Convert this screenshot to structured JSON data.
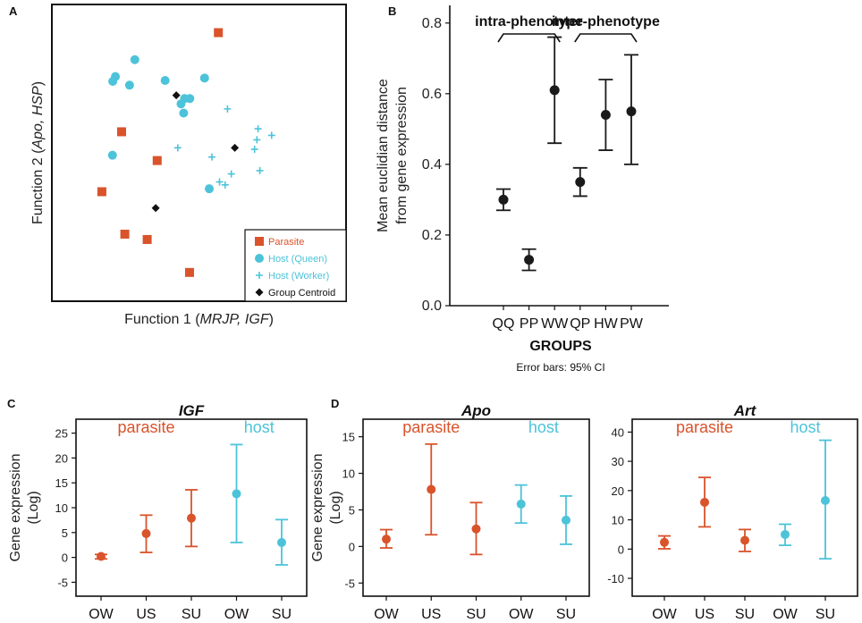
{
  "colors": {
    "parasite": "#d9532b",
    "host": "#4cc3d9",
    "centroid": "#111111",
    "axis": "#111111",
    "point": "#1a1a1a"
  },
  "panels": {
    "A": {
      "letter": "A"
    },
    "B": {
      "letter": "B"
    },
    "C": {
      "letter": "C"
    },
    "D": {
      "letter": "D"
    }
  },
  "chart_data": [
    {
      "id": "A",
      "type": "scatter",
      "xlabel_prefix": "Function 1 (",
      "xlabel_italic": "MRJP, IGF",
      "xlabel_suffix": ")",
      "ylabel_prefix": "Function 2 (",
      "ylabel_italic": "Apo, HSP",
      "ylabel_suffix": ")",
      "xlim": [
        0,
        100
      ],
      "ylim": [
        0,
        100
      ],
      "legend": [
        {
          "key": "parasite",
          "label": "Parasite",
          "marker": "square",
          "color": "#d9532b"
        },
        {
          "key": "queen",
          "label": "Host  (Queen)",
          "marker": "circle",
          "color": "#4cc3d9"
        },
        {
          "key": "worker",
          "label": "Host  (Worker)",
          "marker": "plus",
          "color": "#4cc3d9"
        },
        {
          "key": "centroid",
          "label": "Group Centroid",
          "marker": "diamond",
          "color": "#111111"
        }
      ],
      "series": [
        {
          "name": "Parasite",
          "marker": "square",
          "color": "#d9532b",
          "points": [
            [
              56.6,
              90.5
            ],
            [
              23.7,
              57.1
            ],
            [
              35.8,
              47.4
            ],
            [
              17.0,
              36.9
            ],
            [
              24.8,
              22.6
            ],
            [
              32.4,
              20.8
            ],
            [
              46.8,
              9.7
            ]
          ]
        },
        {
          "name": "Host (Queen)",
          "marker": "circle",
          "color": "#4cc3d9",
          "points": [
            [
              28.2,
              81.4
            ],
            [
              21.6,
              75.7
            ],
            [
              20.7,
              74.1
            ],
            [
              26.4,
              72.8
            ],
            [
              38.5,
              74.4
            ],
            [
              51.9,
              75.2
            ],
            [
              45.1,
              68.3
            ],
            [
              46.9,
              68.3
            ],
            [
              43.9,
              66.5
            ],
            [
              44.8,
              63.4
            ],
            [
              20.6,
              49.2
            ],
            [
              53.5,
              37.9
            ]
          ]
        },
        {
          "name": "Host (Worker)",
          "marker": "plus",
          "color": "#4cc3d9",
          "points": [
            [
              59.7,
              64.8
            ],
            [
              70.1,
              58.1
            ],
            [
              74.7,
              55.9
            ],
            [
              69.7,
              54.4
            ],
            [
              68.9,
              51.2
            ],
            [
              42.8,
              51.7
            ],
            [
              54.4,
              48.6
            ],
            [
              70.7,
              44.0
            ],
            [
              61.0,
              42.9
            ],
            [
              57.0,
              40.2
            ],
            [
              58.9,
              39.2
            ]
          ]
        },
        {
          "name": "Group Centroid",
          "marker": "diamond",
          "color": "#111111",
          "points": [
            [
              42.3,
              69.4
            ],
            [
              62.2,
              51.7
            ],
            [
              35.3,
              31.4
            ]
          ]
        }
      ]
    },
    {
      "id": "B",
      "type": "errorbar",
      "ylabel_line1": "Mean euclidian distance",
      "ylabel_line2": "from gene expression",
      "xlabel": "GROUPS",
      "note": "Error bars: 95% CI",
      "categories": [
        "QQ",
        "PP",
        "WW",
        "QP",
        "HW",
        "PW"
      ],
      "values": [
        0.3,
        0.13,
        0.61,
        0.35,
        0.54,
        0.55
      ],
      "ci_low": [
        0.27,
        0.1,
        0.46,
        0.31,
        0.44,
        0.4
      ],
      "ci_high": [
        0.33,
        0.16,
        0.76,
        0.39,
        0.64,
        0.71
      ],
      "ylim": [
        0.0,
        0.85
      ],
      "yticks": [
        0.0,
        0.2,
        0.4,
        0.6,
        0.8
      ],
      "ytick_labels": [
        "0.0",
        "0.2",
        "0.4",
        "0.6",
        "0.8"
      ],
      "brackets": [
        {
          "label": "intra-phenotype",
          "from": 0,
          "to": 2
        },
        {
          "label": "inter-phenotype",
          "from": 3,
          "to": 5
        }
      ]
    },
    {
      "id": "C",
      "type": "errorbar",
      "title": "IGF",
      "ylabel_line1": "Gene expression",
      "ylabel_line2": "(Log)",
      "categories": [
        "OW",
        "US",
        "SU",
        "OW",
        "SU"
      ],
      "values": [
        0.2,
        4.8,
        7.9,
        12.8,
        3.0
      ],
      "ci_low": [
        -0.3,
        1.0,
        2.2,
        3.0,
        -1.5
      ],
      "ci_high": [
        0.6,
        8.5,
        13.6,
        22.7,
        7.6
      ],
      "groups": [
        "parasite",
        "parasite",
        "parasite",
        "host",
        "host"
      ],
      "ylim": [
        -7.8,
        27.8
      ],
      "yticks": [
        -5,
        0,
        5,
        10,
        15,
        20,
        25
      ],
      "ytick_labels": [
        "-5",
        "0",
        "5",
        "10",
        "15",
        "20",
        "25"
      ],
      "group_labels": {
        "parasite": "parasite",
        "host": "host"
      }
    },
    {
      "id": "D1",
      "type": "errorbar",
      "title": "Apo",
      "ylabel_line1": "Gene expression",
      "ylabel_line2": "(Log)",
      "categories": [
        "OW",
        "US",
        "SU",
        "OW",
        "SU"
      ],
      "values": [
        1.0,
        7.8,
        2.4,
        5.8,
        3.6
      ],
      "ci_low": [
        -0.2,
        1.6,
        -1.1,
        3.2,
        0.3
      ],
      "ci_high": [
        2.3,
        14.0,
        6.0,
        8.4,
        6.9
      ],
      "groups": [
        "parasite",
        "parasite",
        "parasite",
        "host",
        "host"
      ],
      "ylim": [
        -6.8,
        17.4
      ],
      "yticks": [
        -5,
        0,
        5,
        10,
        15
      ],
      "ytick_labels": [
        "-5",
        "0",
        "5",
        "10",
        "15"
      ],
      "group_labels": {
        "parasite": "parasite",
        "host": "host"
      }
    },
    {
      "id": "D2",
      "type": "errorbar",
      "title": "Art",
      "categories": [
        "OW",
        "US",
        "SU",
        "OW",
        "SU"
      ],
      "values": [
        2.3,
        16.0,
        3.0,
        5.0,
        16.6
      ],
      "ci_low": [
        0.1,
        7.6,
        -0.8,
        1.3,
        -3.3
      ],
      "ci_high": [
        4.5,
        24.5,
        6.7,
        8.5,
        37.2
      ],
      "groups": [
        "parasite",
        "parasite",
        "parasite",
        "host",
        "host"
      ],
      "ylim": [
        -16.1,
        44.4
      ],
      "yticks": [
        -10,
        0,
        10,
        20,
        30,
        40
      ],
      "ytick_labels": [
        "-10",
        "0",
        "10",
        "20",
        "30",
        "40"
      ],
      "group_labels": {
        "parasite": "parasite",
        "host": "host"
      }
    }
  ]
}
